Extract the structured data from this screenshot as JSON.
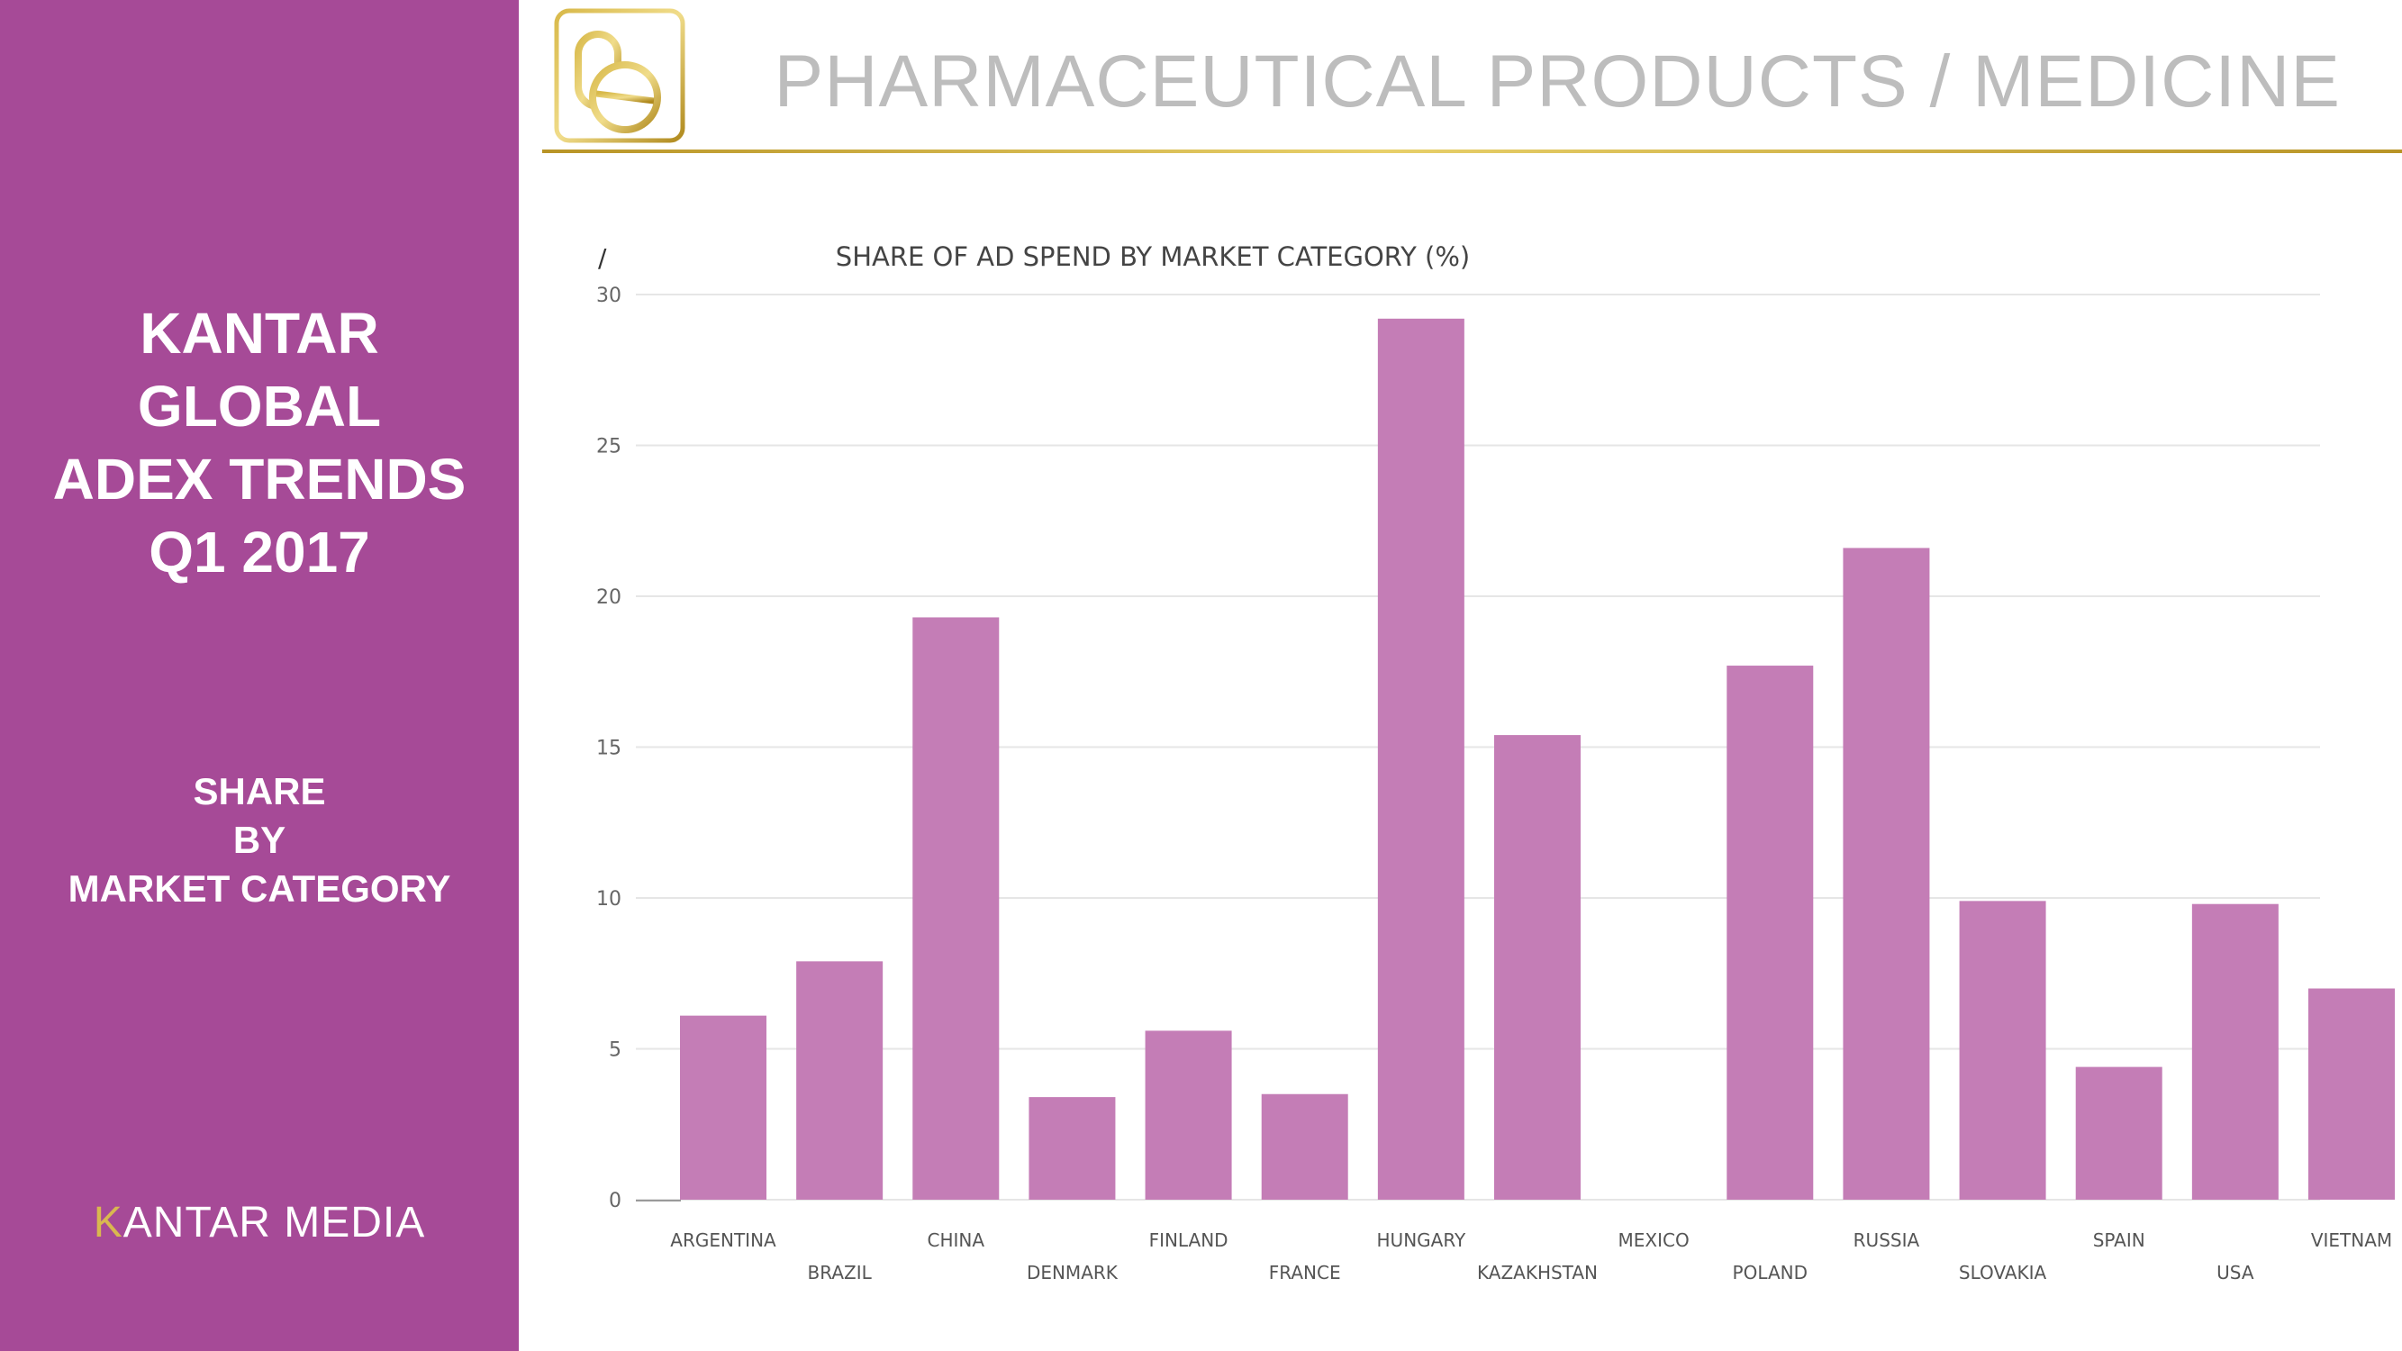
{
  "sidebar": {
    "title_lines": [
      "KANTAR",
      "GLOBAL",
      "ADEX TRENDS",
      "Q1 2017"
    ],
    "subtitle_lines": [
      "SHARE",
      "BY",
      "MARKET CATEGORY"
    ],
    "brand": {
      "k": "K",
      "rest": "ANTAR MEDIA"
    }
  },
  "header": {
    "title": "PHARMACEUTICAL PRODUCTS / MEDICINE",
    "icon": "pill-icon"
  },
  "colors": {
    "sidebar": "#a64a97",
    "bar": "#c47db6",
    "gold": "#c9a227",
    "header_text": "#bdbdbd"
  },
  "chart_data": {
    "type": "bar",
    "corner_mark": "/",
    "title": "SHARE OF AD SPEND BY MARKET CATEGORY (%)",
    "xlabel": "",
    "ylabel": "",
    "ylim": [
      0,
      30
    ],
    "yticks": [
      0,
      5,
      10,
      15,
      20,
      25,
      30
    ],
    "grid": true,
    "categories": [
      "ARGENTINA",
      "BRAZIL",
      "CHINA",
      "DENMARK",
      "FINLAND",
      "FRANCE",
      "HUNGARY",
      "KAZAKHSTAN",
      "MEXICO",
      "POLAND",
      "RUSSIA",
      "SLOVAKIA",
      "SPAIN",
      "USA",
      "VIETNAM"
    ],
    "values": [
      6.1,
      7.9,
      19.3,
      3.4,
      5.6,
      3.5,
      29.2,
      15.4,
      0,
      17.7,
      21.6,
      9.9,
      4.4,
      9.8,
      7.0
    ]
  }
}
